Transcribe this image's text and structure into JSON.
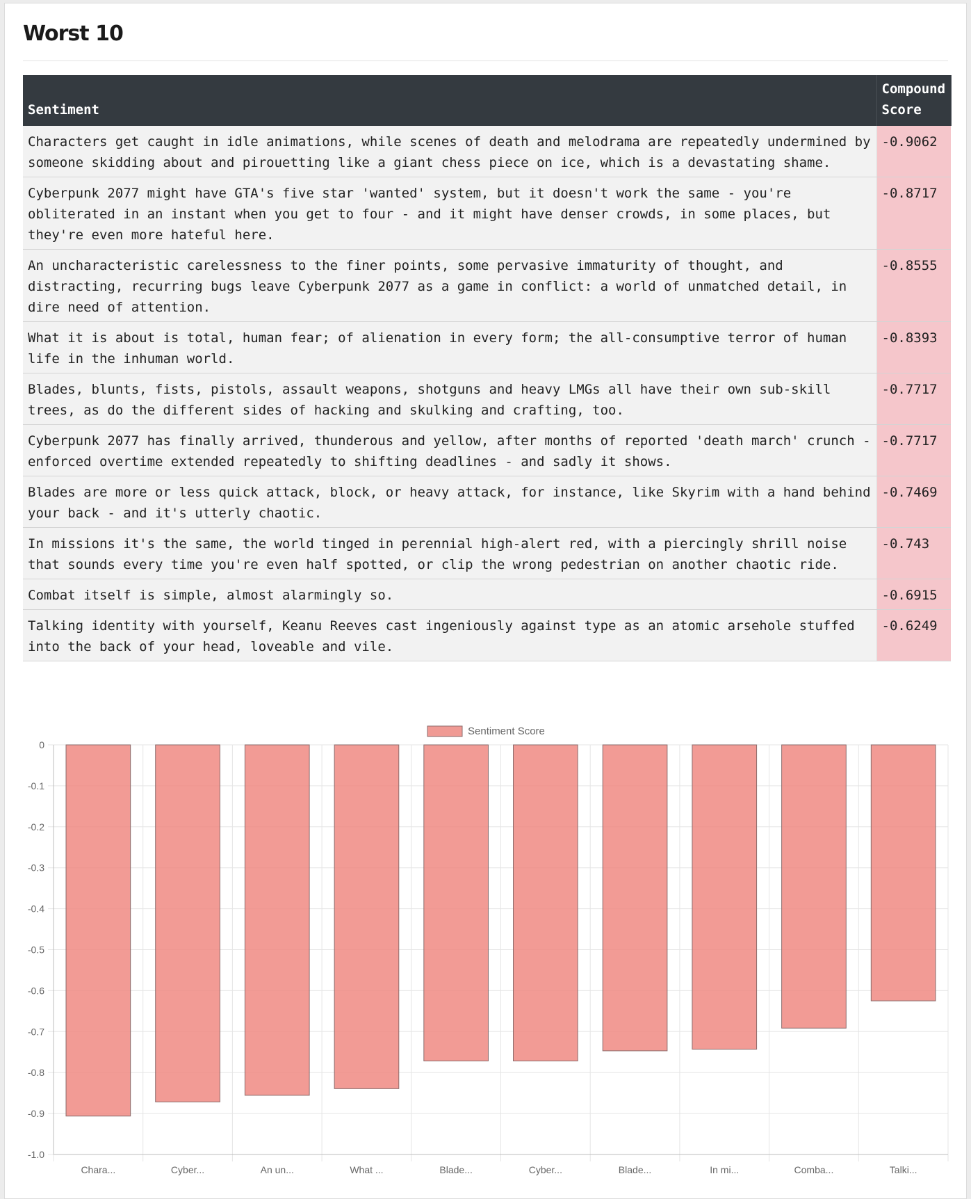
{
  "heading": "Worst 10",
  "table": {
    "headers": {
      "sentiment": "Sentiment",
      "score": "Compound Score"
    },
    "rows": [
      {
        "text": "Characters get caught in idle animations, while scenes of death and melodrama are repeatedly undermined by someone skidding about and pirouetting like a giant chess piece on ice, which is a devastating shame.",
        "score": "-0.9062"
      },
      {
        "text": "Cyberpunk 2077 might have GTA's five star 'wanted' system, but it doesn't work the same - you're obliterated in an instant when you get to four - and it might have denser crowds, in some places, but they're even more hateful here.",
        "score": "-0.8717"
      },
      {
        "text": "An uncharacteristic carelessness to the finer points, some pervasive immaturity of thought, and distracting, recurring bugs leave Cyberpunk 2077 as a game in conflict: a world of unmatched detail, in dire need of attention.",
        "score": "-0.8555"
      },
      {
        "text": "What it is about is total, human fear; of alienation in every form; the all-consumptive terror of human life in the inhuman world.",
        "score": "-0.8393"
      },
      {
        "text": "Blades, blunts, fists, pistols, assault weapons, shotguns and heavy LMGs all have their own sub-skill trees, as do the different sides of hacking and skulking and crafting, too.",
        "score": "-0.7717"
      },
      {
        "text": "Cyberpunk 2077 has finally arrived, thunderous and yellow, after months of reported 'death march' crunch - enforced overtime extended repeatedly to shifting deadlines - and sadly it shows.",
        "score": "-0.7717"
      },
      {
        "text": "Blades are more or less quick attack, block, or heavy attack, for instance, like Skyrim with a hand behind your back - and it's utterly chaotic.",
        "score": "-0.7469"
      },
      {
        "text": "In missions it's the same, the world tinged in perennial high-alert red, with a piercingly shrill noise that sounds every time you're even half spotted, or clip the wrong pedestrian on another chaotic ride.",
        "score": "-0.743"
      },
      {
        "text": "Combat itself is simple, almost alarmingly so.",
        "score": "-0.6915"
      },
      {
        "text": "Talking identity with yourself, Keanu Reeves cast ingeniously against type as an atomic arsehole stuffed into the back of your head, loveable and vile.",
        "score": "-0.6249"
      }
    ]
  },
  "chart_data": {
    "type": "bar",
    "categories": [
      "Chara...",
      "Cyber...",
      "An un...",
      "What ...",
      "Blade...",
      "Cyber...",
      "Blade...",
      "In mi...",
      "Comba...",
      "Talki..."
    ],
    "series": [
      {
        "name": "Sentiment Score",
        "values": [
          -0.9062,
          -0.8717,
          -0.8555,
          -0.8393,
          -0.7717,
          -0.7717,
          -0.7469,
          -0.743,
          -0.6915,
          -0.6249
        ]
      }
    ],
    "yticks": [
      "0",
      "-0.1",
      "-0.2",
      "-0.3",
      "-0.4",
      "-0.5",
      "-0.6",
      "-0.7",
      "-0.8",
      "-0.9",
      "-1.0"
    ],
    "ylim": [
      -1.0,
      0
    ],
    "grid": true,
    "legend": "top-center",
    "colors": {
      "bar_fill": "#f08a82",
      "bar_stroke": "#8a6b6b",
      "grid": "#e5e5e5",
      "axis_text": "#666666"
    }
  }
}
